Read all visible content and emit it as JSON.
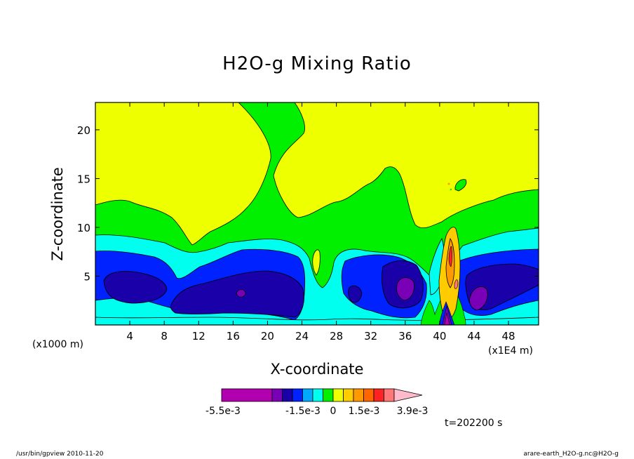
{
  "chart_data": {
    "type": "contour",
    "title": "H2O-g Mixing Ratio",
    "xlabel": "X-coordinate",
    "ylabel": "Z-coordinate",
    "x_unit": "(x1000 m)",
    "x_scale": "(x1E4 m)",
    "xlim": [
      0,
      51.5
    ],
    "ylim": [
      0,
      22.8
    ],
    "x_ticks": [
      4,
      8,
      12,
      16,
      20,
      24,
      28,
      32,
      36,
      40,
      44,
      48
    ],
    "y_ticks": [
      5,
      10,
      15,
      20
    ],
    "colorbar": {
      "labels": [
        "-5.5e-3",
        "-1.5e-3",
        "0",
        "1.5e-3",
        "3.9e-3"
      ],
      "colors": [
        "#b000b0",
        "#b000b0",
        "#7a00b8",
        "#1a00a8",
        "#0022ff",
        "#00aaff",
        "#00ffee",
        "#00f000",
        "#eeff00",
        "#ffcc00",
        "#ff9900",
        "#ff6600",
        "#ff2222",
        "#ff7777",
        "#ffbbcc"
      ]
    },
    "time_label": "t=202200 s"
  },
  "footer": {
    "left": "/usr/bin/gpview   2010-11-20",
    "right": "arare-earth_H2O-g.nc@H2O-g"
  }
}
